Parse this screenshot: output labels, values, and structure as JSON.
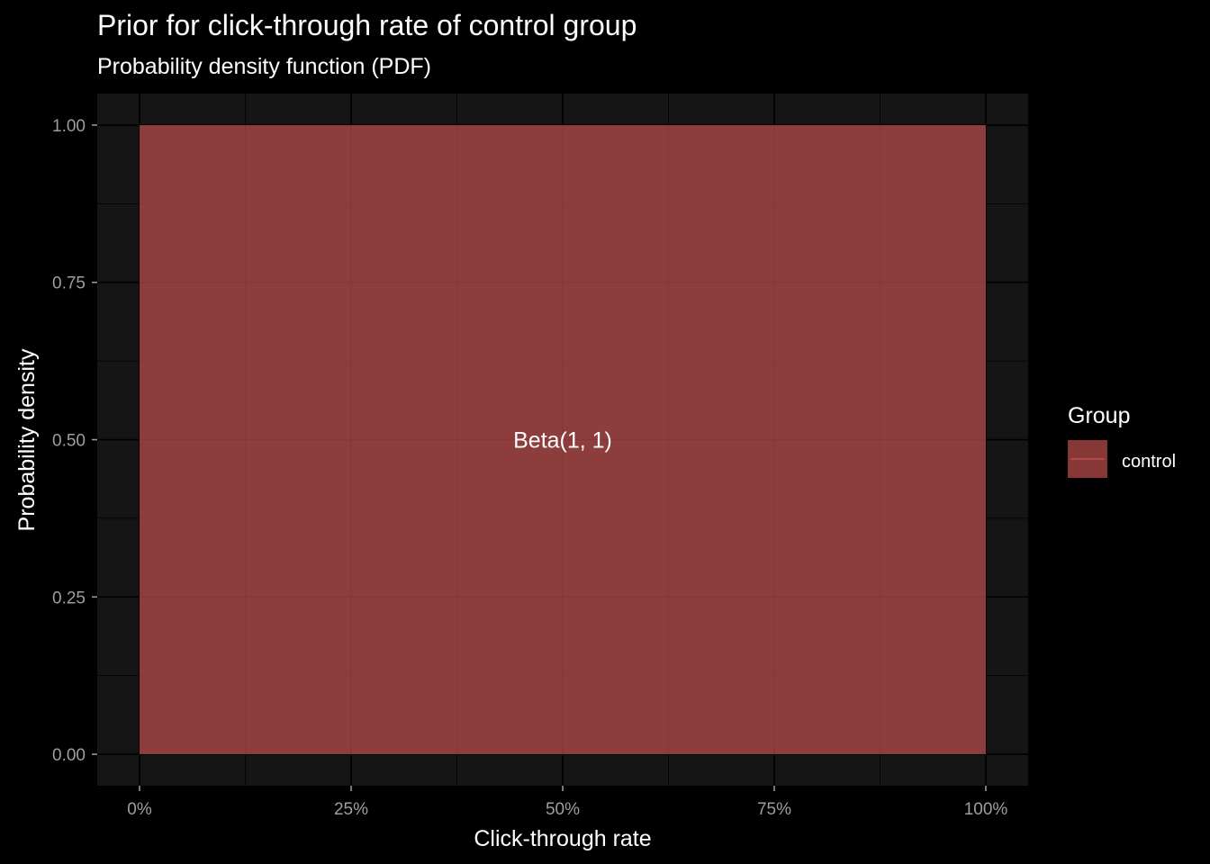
{
  "chart_data": {
    "type": "area",
    "title": "Prior for click-through rate of control group",
    "subtitle": "Probability density function (PDF)",
    "xlabel": "Click-through rate",
    "ylabel": "Probability density",
    "xlim": [
      -0.05,
      1.05
    ],
    "ylim": [
      -0.05,
      1.05
    ],
    "x_ticks": [
      0,
      0.25,
      0.5,
      0.75,
      1
    ],
    "x_tick_labels": [
      "0%",
      "25%",
      "50%",
      "75%",
      "100%"
    ],
    "y_ticks": [
      0,
      0.25,
      0.5,
      0.75,
      1
    ],
    "y_tick_labels": [
      "0.00",
      "0.25",
      "0.50",
      "0.75",
      "1.00"
    ],
    "grid": true,
    "series": [
      {
        "name": "control",
        "color": "#c0504d",
        "x": [
          0,
          1
        ],
        "y": [
          1,
          1
        ]
      }
    ],
    "annotations": [
      {
        "text": "Beta(1, 1)",
        "x": 0.5,
        "y": 0.5
      }
    ],
    "legend": {
      "title": "Group",
      "position": "right",
      "entries": [
        "control"
      ]
    },
    "colors": {
      "background": "#000000",
      "panel": "#151515",
      "grid": "#000000",
      "fill": "#c0504d",
      "fill_opacity": 0.7
    }
  }
}
